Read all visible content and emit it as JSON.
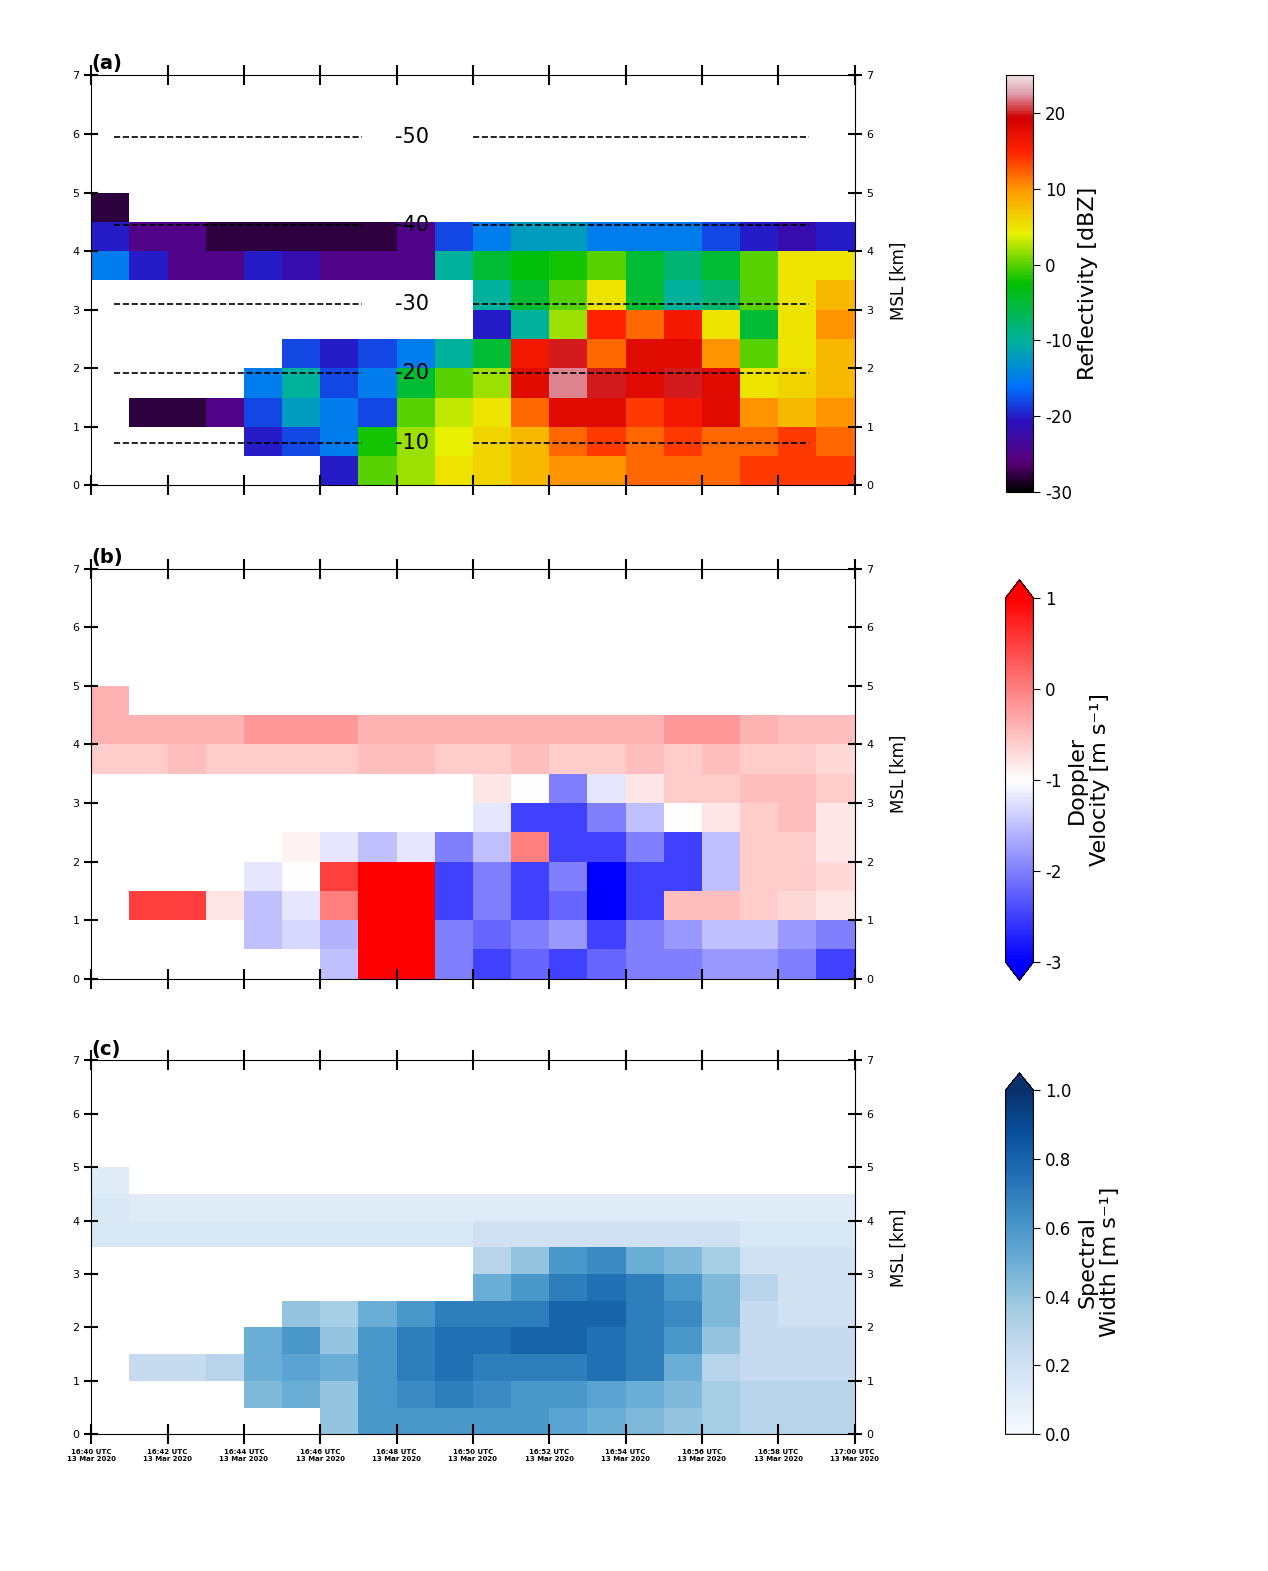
{
  "chart_data": [
    {
      "type": "heatmap",
      "panel_label": "(a)",
      "ylabel": "MSL [km]",
      "xlim": [
        40,
        60
      ],
      "ylim": [
        0,
        7
      ],
      "xticks": [
        40,
        42,
        44,
        46,
        48,
        50,
        52,
        54,
        56,
        58,
        60
      ],
      "yticks": [
        0,
        1,
        2,
        3,
        4,
        5,
        6,
        7
      ],
      "tick_labels": "y",
      "x_edges": [
        40,
        41,
        42,
        43,
        44,
        45,
        46,
        47,
        48,
        49,
        50,
        51,
        52,
        53,
        54,
        55,
        56,
        57,
        58,
        59,
        60
      ],
      "y_edges": [
        0,
        0.5,
        1,
        1.5,
        2,
        2.5,
        3,
        3.5,
        4,
        4.5,
        5
      ],
      "cells": [
        [
          null,
          null,
          null,
          null,
          null,
          null,
          -20,
          0,
          2,
          5,
          6,
          8,
          10,
          10,
          12,
          12,
          12,
          14,
          14,
          14
        ],
        [
          null,
          null,
          null,
          null,
          -20,
          -18,
          -15,
          -2,
          2,
          4,
          6,
          8,
          12,
          14,
          12,
          14,
          12,
          12,
          14,
          12
        ],
        [
          null,
          -28,
          -28,
          -25,
          -18,
          -12,
          -15,
          -18,
          0,
          3,
          5,
          12,
          18,
          18,
          14,
          16,
          18,
          10,
          8,
          10
        ],
        [
          null,
          null,
          null,
          null,
          -15,
          -10,
          -18,
          -15,
          -5,
          0,
          2,
          18,
          22,
          20,
          18,
          20,
          18,
          5,
          6,
          8
        ],
        [
          null,
          null,
          null,
          null,
          null,
          -18,
          -20,
          -18,
          -15,
          -10,
          -5,
          16,
          20,
          12,
          18,
          18,
          10,
          0,
          5,
          8
        ],
        [
          null,
          null,
          null,
          null,
          null,
          null,
          null,
          null,
          null,
          null,
          -20,
          -10,
          2,
          15,
          12,
          16,
          5,
          -5,
          5,
          10
        ],
        [
          null,
          null,
          null,
          null,
          null,
          null,
          null,
          null,
          null,
          null,
          -10,
          -5,
          0,
          5,
          -5,
          -10,
          -8,
          0,
          5,
          8
        ],
        [
          -15,
          -20,
          -25,
          -25,
          -20,
          -22,
          -25,
          -25,
          -25,
          -10,
          -5,
          -3,
          -2,
          0,
          -5,
          -8,
          -5,
          0,
          5,
          5
        ],
        [
          -20,
          -25,
          -25,
          -28,
          -28,
          -28,
          -28,
          -28,
          -25,
          -18,
          -15,
          -12,
          -12,
          -15,
          -15,
          -15,
          -18,
          -20,
          -22,
          -20
        ],
        [
          -28,
          null,
          null,
          null,
          null,
          null,
          null,
          null,
          null,
          null,
          null,
          null,
          null,
          null,
          null,
          null,
          null,
          null,
          null,
          null
        ]
      ],
      "colorbar": {
        "label": "Reflectivity [dBZ]",
        "range": [
          -30,
          25
        ],
        "ticks": [
          -30,
          -20,
          -10,
          0,
          10,
          20
        ]
      },
      "isotherms": {
        "x": [
          40.6,
          58.8
        ],
        "label_x": 48.4,
        "levels": [
          {
            "label": "-50",
            "height": 5.95
          },
          {
            "label": "-40",
            "height": 4.45
          },
          {
            "label": "-30",
            "height": 3.1
          },
          {
            "label": "-20",
            "height": 1.92
          },
          {
            "label": "-10",
            "height": 0.72
          }
        ]
      }
    },
    {
      "type": "heatmap",
      "panel_label": "(b)",
      "ylabel": "MSL [km]",
      "xlim": [
        40,
        60
      ],
      "ylim": [
        0,
        7
      ],
      "xticks": [
        40,
        42,
        44,
        46,
        48,
        50,
        52,
        54,
        56,
        58,
        60
      ],
      "yticks": [
        0,
        1,
        2,
        3,
        4,
        5,
        6,
        7
      ],
      "tick_labels": "y",
      "x_edges": [
        40,
        41,
        42,
        43,
        44,
        45,
        46,
        47,
        48,
        49,
        50,
        51,
        52,
        53,
        54,
        55,
        56,
        57,
        58,
        59,
        60
      ],
      "y_edges": [
        0,
        0.5,
        1,
        1.5,
        2,
        2.5,
        3,
        3.5,
        4,
        4.5,
        5
      ],
      "cells": [
        [
          null,
          null,
          null,
          null,
          null,
          null,
          -1.5,
          1,
          1,
          -2,
          -2.5,
          -2.2,
          -2.5,
          -2.2,
          -2,
          -2,
          -1.8,
          -1.8,
          -2,
          -2.5
        ],
        [
          null,
          null,
          null,
          null,
          -1.5,
          -1.3,
          -1.6,
          1,
          1,
          -2,
          -2.2,
          -2,
          -1.8,
          -2.5,
          -2,
          -1.8,
          -1.5,
          -1.5,
          -1.8,
          -2
        ],
        [
          null,
          0.5,
          0.5,
          -0.8,
          -1.5,
          -1.2,
          0,
          1,
          1,
          -2.5,
          -2,
          -2.5,
          -2.2,
          -3,
          -2.5,
          -0.5,
          -0.5,
          -0.6,
          -0.7,
          -0.8
        ],
        [
          null,
          null,
          null,
          null,
          -1.2,
          -1,
          0.5,
          1,
          1,
          -2.5,
          -2,
          -2.5,
          -2,
          -3,
          -2.5,
          -2.5,
          -1.5,
          -0.6,
          -0.6,
          -0.7
        ],
        [
          null,
          null,
          null,
          null,
          null,
          -0.9,
          -1.2,
          -1.5,
          -1.2,
          -2,
          -1.5,
          0,
          -2.5,
          -2.5,
          -2,
          -2.5,
          -1.5,
          -0.6,
          -0.6,
          -0.8
        ],
        [
          null,
          null,
          null,
          null,
          null,
          null,
          null,
          null,
          null,
          null,
          -1.2,
          -2.5,
          -2.5,
          -2,
          -1.5,
          -1,
          -0.8,
          -0.6,
          -0.5,
          -0.8
        ],
        [
          null,
          null,
          null,
          null,
          null,
          null,
          null,
          null,
          null,
          null,
          -0.8,
          -1,
          -2,
          -1.2,
          -0.8,
          -0.6,
          -0.6,
          -0.5,
          -0.5,
          -0.6
        ],
        [
          -0.6,
          -0.6,
          -0.5,
          -0.6,
          -0.6,
          -0.6,
          -0.6,
          -0.5,
          -0.5,
          -0.6,
          -0.6,
          -0.5,
          -0.6,
          -0.6,
          -0.5,
          -0.6,
          -0.5,
          -0.6,
          -0.6,
          -0.7
        ],
        [
          -0.4,
          -0.4,
          -0.4,
          -0.4,
          -0.2,
          -0.2,
          -0.2,
          -0.4,
          -0.4,
          -0.4,
          -0.4,
          -0.4,
          -0.4,
          -0.4,
          -0.4,
          -0.2,
          -0.2,
          -0.4,
          -0.5,
          -0.5
        ],
        [
          -0.4,
          null,
          null,
          null,
          null,
          null,
          null,
          null,
          null,
          null,
          null,
          null,
          null,
          null,
          null,
          null,
          null,
          null,
          null,
          null
        ]
      ],
      "colorbar": {
        "label": "Doppler\nVelocity [m s⁻¹]",
        "range": [
          -3,
          1
        ],
        "ticks": [
          -3,
          -2,
          -1,
          0,
          1
        ]
      }
    },
    {
      "type": "heatmap",
      "panel_label": "(c)",
      "ylabel": "MSL [km]",
      "xlim": [
        40,
        60
      ],
      "ylim": [
        0,
        7
      ],
      "xticks": [
        {
          "value": 40,
          "label": "16:40 UTC\n13 Mar 2020"
        },
        {
          "value": 42,
          "label": "16:42 UTC\n13 Mar 2020"
        },
        {
          "value": 44,
          "label": "16:44 UTC\n13 Mar 2020"
        },
        {
          "value": 46,
          "label": "16:46 UTC\n13 Mar 2020"
        },
        {
          "value": 48,
          "label": "16:48 UTC\n13 Mar 2020"
        },
        {
          "value": 50,
          "label": "16:50 UTC\n13 Mar 2020"
        },
        {
          "value": 52,
          "label": "16:52 UTC\n13 Mar 2020"
        },
        {
          "value": 54,
          "label": "16:54 UTC\n13 Mar 2020"
        },
        {
          "value": 56,
          "label": "16:56 UTC\n13 Mar 2020"
        },
        {
          "value": 58,
          "label": "16:58 UTC\n13 Mar 2020"
        },
        {
          "value": 60,
          "label": "17:00 UTC\n13 Mar 2020"
        }
      ],
      "yticks": [
        0,
        1,
        2,
        3,
        4,
        5,
        6,
        7
      ],
      "x_edges": [
        40,
        41,
        42,
        43,
        44,
        45,
        46,
        47,
        48,
        49,
        50,
        51,
        52,
        53,
        54,
        55,
        56,
        57,
        58,
        59,
        60
      ],
      "y_edges": [
        0,
        0.5,
        1,
        1.5,
        2,
        2.5,
        3,
        3.5,
        4,
        4.5,
        5
      ],
      "cells": [
        [
          null,
          null,
          null,
          null,
          null,
          null,
          0.4,
          0.6,
          0.6,
          0.6,
          0.6,
          0.6,
          0.55,
          0.5,
          0.45,
          0.4,
          0.35,
          0.3,
          0.3,
          0.3
        ],
        [
          null,
          null,
          null,
          null,
          0.45,
          0.5,
          0.4,
          0.6,
          0.65,
          0.7,
          0.65,
          0.6,
          0.6,
          0.55,
          0.5,
          0.45,
          0.35,
          0.3,
          0.3,
          0.3
        ],
        [
          null,
          0.25,
          0.25,
          0.3,
          0.5,
          0.55,
          0.5,
          0.6,
          0.7,
          0.75,
          0.7,
          0.7,
          0.7,
          0.75,
          0.7,
          0.5,
          0.3,
          0.25,
          0.25,
          0.25
        ],
        [
          null,
          null,
          null,
          null,
          0.5,
          0.6,
          0.4,
          0.6,
          0.7,
          0.75,
          0.75,
          0.8,
          0.8,
          0.75,
          0.7,
          0.6,
          0.4,
          0.25,
          0.25,
          0.25
        ],
        [
          null,
          null,
          null,
          null,
          null,
          0.4,
          0.35,
          0.5,
          0.6,
          0.7,
          0.7,
          0.7,
          0.8,
          0.8,
          0.7,
          0.65,
          0.45,
          0.25,
          0.2,
          0.2
        ],
        [
          null,
          null,
          null,
          null,
          null,
          null,
          null,
          null,
          null,
          null,
          0.5,
          0.6,
          0.7,
          0.75,
          0.7,
          0.6,
          0.45,
          0.3,
          0.2,
          0.2
        ],
        [
          null,
          null,
          null,
          null,
          null,
          null,
          null,
          null,
          null,
          null,
          0.3,
          0.4,
          0.6,
          0.65,
          0.5,
          0.45,
          0.35,
          0.2,
          0.2,
          0.2
        ],
        [
          0.15,
          0.15,
          0.15,
          0.15,
          0.15,
          0.15,
          0.15,
          0.15,
          0.15,
          0.15,
          0.2,
          0.2,
          0.2,
          0.2,
          0.2,
          0.2,
          0.2,
          0.15,
          0.15,
          0.15
        ],
        [
          0.15,
          0.12,
          0.12,
          0.12,
          0.12,
          0.12,
          0.12,
          0.12,
          0.12,
          0.12,
          0.12,
          0.12,
          0.12,
          0.12,
          0.12,
          0.12,
          0.12,
          0.12,
          0.12,
          0.12
        ],
        [
          0.12,
          null,
          null,
          null,
          null,
          null,
          null,
          null,
          null,
          null,
          null,
          null,
          null,
          null,
          null,
          null,
          null,
          null,
          null,
          null
        ]
      ],
      "colorbar": {
        "label": "Spectral\nWidth [m s⁻¹]",
        "range": [
          0.0,
          1.0
        ],
        "ticks": [
          0.0,
          0.2,
          0.4,
          0.6,
          0.8,
          1.0
        ]
      }
    }
  ]
}
